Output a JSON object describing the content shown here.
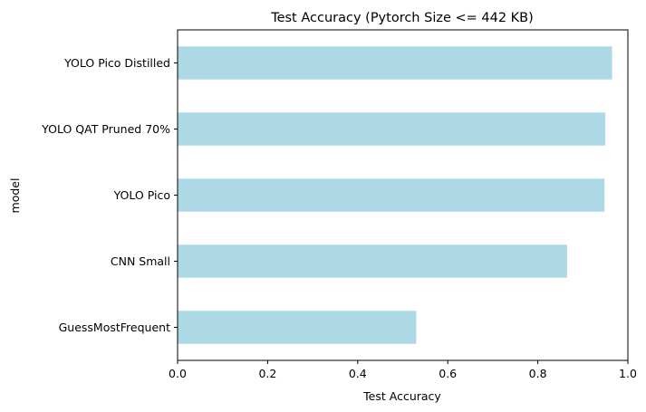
{
  "chart_data": {
    "type": "bar",
    "orientation": "horizontal",
    "title": "Test Accuracy (Pytorch Size <= 442 KB)",
    "xlabel": "Test Accuracy",
    "ylabel": "model",
    "categories": [
      "YOLO Pico Distilled",
      "YOLO QAT Pruned 70%",
      "YOLO Pico",
      "CNN Small",
      "GuessMostFrequent"
    ],
    "values": [
      0.965,
      0.95,
      0.948,
      0.865,
      0.53
    ],
    "xlim": [
      0,
      1.0
    ],
    "xticks": [
      "0.0",
      "0.2",
      "0.4",
      "0.6",
      "0.8",
      "1.0"
    ],
    "grid": false,
    "legend": "none",
    "bar_color": "#add8e6"
  }
}
